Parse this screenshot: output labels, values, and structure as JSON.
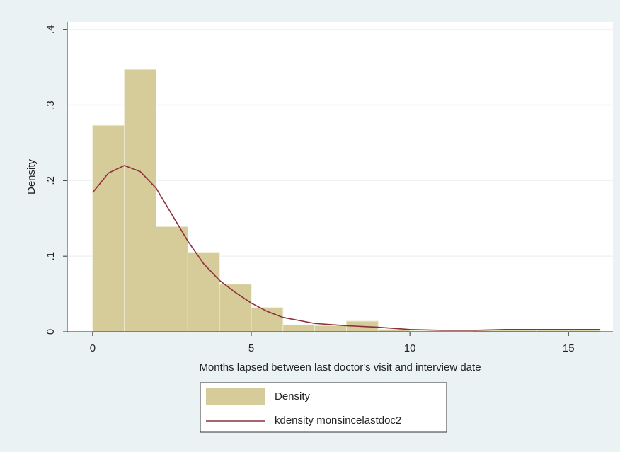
{
  "chart_data": {
    "type": "histogram",
    "x_label": "Months lapsed between last doctor's visit and interview date",
    "y_label": "Density",
    "bins": [
      0,
      1,
      2,
      3,
      4,
      5,
      6,
      7,
      8,
      9,
      10,
      11,
      12,
      13,
      14,
      15,
      16
    ],
    "series": [
      {
        "name": "Density",
        "type": "histogram",
        "color": "#d5cc9a",
        "values": [
          0.273,
          0.347,
          0.139,
          0.105,
          0.063,
          0.032,
          0.009,
          0.008,
          0.014,
          0.003,
          0.001,
          0.001,
          0.002,
          0.002,
          0.002,
          0.002
        ]
      },
      {
        "name": "kdensity monsincelastdoc2",
        "type": "line",
        "color": "#8e2f3c",
        "x": [
          0,
          0.5,
          1,
          1.5,
          2,
          2.5,
          3,
          3.5,
          4,
          4.5,
          5,
          5.5,
          6,
          7,
          8,
          9,
          10,
          11,
          12,
          13,
          14,
          15,
          16
        ],
        "values": [
          0.184,
          0.21,
          0.22,
          0.212,
          0.19,
          0.155,
          0.12,
          0.09,
          0.068,
          0.052,
          0.038,
          0.027,
          0.019,
          0.011,
          0.008,
          0.006,
          0.003,
          0.002,
          0.002,
          0.003,
          0.003,
          0.003,
          0.003
        ]
      }
    ],
    "xlim": [
      -0.8,
      16.4
    ],
    "ylim": [
      0,
      0.41
    ],
    "xticks": [
      0,
      5,
      10,
      15
    ],
    "yticks": [
      0,
      {
        "value": 0.1,
        "label": ".1"
      },
      {
        "value": 0.2,
        "label": ".2"
      },
      {
        "value": 0.3,
        "label": ".3"
      },
      {
        "value": 0.4,
        "label": ".4"
      }
    ],
    "grid": true,
    "legend": "bottom"
  }
}
